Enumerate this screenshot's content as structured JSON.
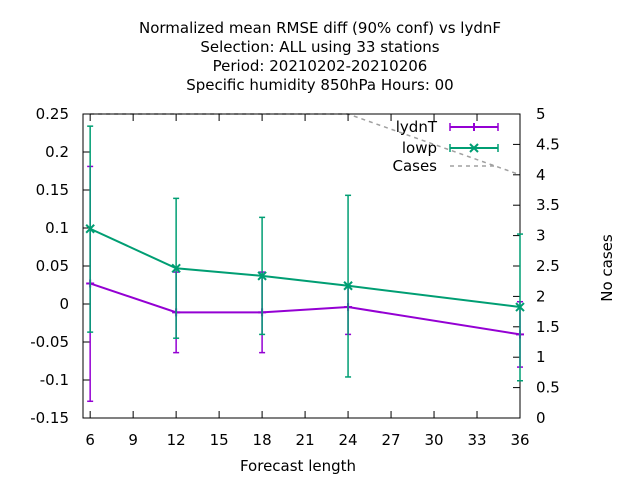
{
  "chart_data": {
    "type": "line",
    "title_lines": [
      "Normalized mean RMSE diff (90% conf) vs lydnF",
      "Selection: ALL using    33 stations",
      "Period: 20210202-20210206",
      "Specific humidity 850hPa   Hours:  00"
    ],
    "xlabel": "Forecast length",
    "ylabel": "",
    "y2label": "No cases",
    "xlim": [
      5.5,
      36
    ],
    "ylim": [
      -0.15,
      0.25
    ],
    "y2lim": [
      0,
      5
    ],
    "x_ticks": [
      6,
      9,
      12,
      15,
      18,
      21,
      24,
      27,
      30,
      33,
      36
    ],
    "x_tick_labels": [
      "6",
      "9",
      "12",
      "15",
      "18",
      "21",
      "24",
      "27",
      "30",
      "33",
      "36"
    ],
    "y_ticks": [
      -0.15,
      -0.1,
      -0.05,
      0,
      0.05,
      0.1,
      0.15,
      0.2,
      0.25
    ],
    "y_tick_labels": [
      "-0.15",
      "-0.1",
      "-0.05",
      "0",
      "0.05",
      "0.1",
      "0.15",
      "0.2",
      "0.25"
    ],
    "y2_ticks": [
      0,
      0.5,
      1,
      1.5,
      2,
      2.5,
      3,
      3.5,
      4,
      4.5,
      5
    ],
    "y2_tick_labels": [
      "0",
      "0.5",
      "1",
      "1.5",
      "2",
      "2.5",
      "3",
      "3.5",
      "4",
      "4.5",
      "5"
    ],
    "grid": false,
    "legend_position": "top-right",
    "x": [
      6,
      12,
      18,
      24,
      36
    ],
    "series": [
      {
        "name": "lydnT",
        "color": "#9400d3",
        "marker": "plus",
        "axis": "y1",
        "values": [
          0.027,
          -0.011,
          -0.011,
          -0.004,
          -0.04
        ],
        "err_low": [
          -0.128,
          -0.064,
          -0.064,
          -0.04,
          -0.083
        ],
        "err_high": [
          0.181,
          0.042,
          0.042,
          0.024,
          0.003
        ]
      },
      {
        "name": "lowp",
        "color": "#009e73",
        "marker": "x",
        "axis": "y1",
        "values": [
          0.099,
          0.047,
          0.037,
          0.024,
          -0.004
        ],
        "err_low": [
          -0.037,
          -0.045,
          -0.04,
          -0.096,
          -0.101
        ],
        "err_high": [
          0.234,
          0.139,
          0.114,
          0.143,
          0.092
        ]
      },
      {
        "name": "Cases",
        "color": "#a0a0a0",
        "style": "dashed",
        "axis": "y2",
        "x": [
          6,
          12,
          18,
          24,
          36
        ],
        "values": [
          5,
          5,
          5,
          5,
          4
        ]
      }
    ]
  }
}
